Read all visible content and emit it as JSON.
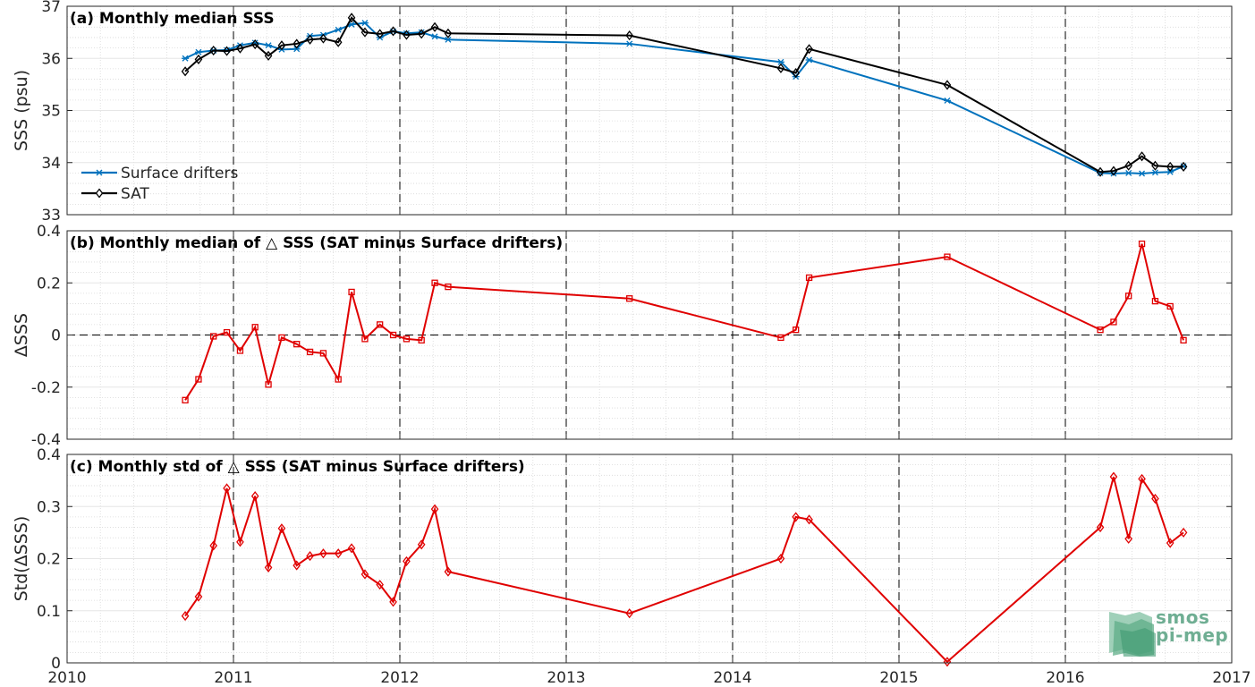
{
  "chart_data": [
    {
      "type": "line",
      "title": "(a) Monthly median SSS",
      "ylabel": "SSS (psu)",
      "xlim": [
        2010,
        2017
      ],
      "ylim": [
        33,
        37
      ],
      "yticks": [
        33,
        34,
        35,
        36,
        37
      ],
      "legend_position": "bottom-left",
      "series": [
        {
          "name": "Surface drifters",
          "color": "#0072BD",
          "marker": "asterisk",
          "x": [
            2010.71,
            2010.79,
            2010.88,
            2010.96,
            2011.04,
            2011.13,
            2011.21,
            2011.29,
            2011.38,
            2011.46,
            2011.54,
            2011.63,
            2011.71,
            2011.79,
            2011.88,
            2011.96,
            2012.04,
            2012.13,
            2012.21,
            2012.29,
            2013.38,
            2014.29,
            2014.38,
            2014.46,
            2015.29,
            2016.21,
            2016.29,
            2016.38,
            2016.46,
            2016.54,
            2016.63,
            2016.71
          ],
          "y": [
            36.0,
            36.12,
            36.15,
            36.16,
            36.25,
            36.3,
            36.25,
            36.17,
            36.18,
            36.43,
            36.45,
            36.55,
            36.65,
            36.68,
            36.4,
            36.52,
            36.48,
            36.5,
            36.42,
            36.36,
            36.28,
            35.93,
            35.65,
            35.97,
            35.19,
            33.8,
            33.79,
            33.8,
            33.79,
            33.81,
            33.82,
            33.93
          ]
        },
        {
          "name": "SAT",
          "color": "#000000",
          "marker": "diamond",
          "x": [
            2010.71,
            2010.79,
            2010.88,
            2010.96,
            2011.04,
            2011.13,
            2011.21,
            2011.29,
            2011.38,
            2011.46,
            2011.54,
            2011.63,
            2011.71,
            2011.79,
            2011.88,
            2011.96,
            2012.04,
            2012.13,
            2012.21,
            2012.29,
            2013.38,
            2014.29,
            2014.38,
            2014.46,
            2015.29,
            2016.21,
            2016.29,
            2016.38,
            2016.46,
            2016.54,
            2016.63,
            2016.71
          ],
          "y": [
            35.75,
            35.98,
            36.15,
            36.14,
            36.19,
            36.27,
            36.05,
            36.25,
            36.28,
            36.36,
            36.38,
            36.31,
            36.78,
            36.5,
            36.47,
            36.52,
            36.45,
            36.47,
            36.6,
            36.48,
            36.44,
            35.81,
            35.72,
            36.18,
            35.49,
            33.82,
            33.84,
            33.94,
            34.12,
            33.94,
            33.92,
            33.92
          ]
        }
      ]
    },
    {
      "type": "line",
      "title": "(b) Monthly median of △ SSS (SAT minus Surface drifters)",
      "ylabel": "ΔSSS",
      "xlim": [
        2010,
        2017
      ],
      "ylim": [
        -0.4,
        0.4
      ],
      "yticks": [
        -0.4,
        -0.2,
        0,
        0.2,
        0.4
      ],
      "ytick_labels": [
        "-0.4",
        "-0.2",
        "0",
        "0.2",
        "0.4"
      ],
      "series": [
        {
          "color": "#E00000",
          "marker": "square",
          "x": [
            2010.71,
            2010.79,
            2010.88,
            2010.96,
            2011.04,
            2011.13,
            2011.21,
            2011.29,
            2011.38,
            2011.46,
            2011.54,
            2011.63,
            2011.71,
            2011.79,
            2011.88,
            2011.96,
            2012.04,
            2012.13,
            2012.21,
            2012.29,
            2013.38,
            2014.29,
            2014.38,
            2014.46,
            2015.29,
            2016.21,
            2016.29,
            2016.38,
            2016.46,
            2016.54,
            2016.63,
            2016.71
          ],
          "y": [
            -0.25,
            -0.17,
            -0.005,
            0.01,
            -0.06,
            0.03,
            -0.19,
            -0.01,
            -0.035,
            -0.065,
            -0.07,
            -0.17,
            0.165,
            -0.015,
            0.04,
            0.0,
            -0.015,
            -0.02,
            0.2,
            0.185,
            0.14,
            -0.01,
            0.02,
            0.22,
            0.3,
            0.02,
            0.05,
            0.15,
            0.35,
            0.13,
            0.11,
            -0.02
          ]
        }
      ]
    },
    {
      "type": "line",
      "title": "(c) Monthly std of △ SSS (SAT minus Surface drifters)",
      "ylabel": "Std(ΔSSS)",
      "xlabel": "",
      "xlim": [
        2010,
        2017
      ],
      "ylim": [
        0,
        0.4
      ],
      "yticks": [
        0,
        0.1,
        0.2,
        0.3,
        0.4
      ],
      "ytick_labels": [
        "0",
        "0.1",
        "0.2",
        "0.3",
        "0.4"
      ],
      "xticks": [
        2010,
        2011,
        2012,
        2013,
        2014,
        2015,
        2016,
        2017
      ],
      "xtick_labels": [
        "2010",
        "2011",
        "2012",
        "2013",
        "2014",
        "2015",
        "2016",
        "2017"
      ],
      "series": [
        {
          "color": "#E00000",
          "marker": "diamond",
          "x": [
            2010.71,
            2010.79,
            2010.88,
            2010.96,
            2011.04,
            2011.13,
            2011.21,
            2011.29,
            2011.38,
            2011.46,
            2011.54,
            2011.63,
            2011.71,
            2011.79,
            2011.88,
            2011.96,
            2012.04,
            2012.13,
            2012.21,
            2012.29,
            2013.38,
            2014.29,
            2014.38,
            2014.46,
            2015.29,
            2016.21,
            2016.29,
            2016.38,
            2016.46,
            2016.54,
            2016.63,
            2016.71
          ],
          "y": [
            0.09,
            0.127,
            0.225,
            0.335,
            0.232,
            0.32,
            0.183,
            0.258,
            0.187,
            0.205,
            0.21,
            0.21,
            0.22,
            0.17,
            0.15,
            0.117,
            0.195,
            0.227,
            0.295,
            0.175,
            0.095,
            0.2,
            0.28,
            0.275,
            0.002,
            0.26,
            0.357,
            0.238,
            0.353,
            0.315,
            0.23,
            0.25
          ]
        }
      ]
    }
  ],
  "logo": {
    "line1": "smos",
    "line2": "pi-mep"
  },
  "colors": {
    "grid": "#d9d9d9",
    "axis": "#262626",
    "red": "#E00000",
    "blue": "#0072BD"
  }
}
